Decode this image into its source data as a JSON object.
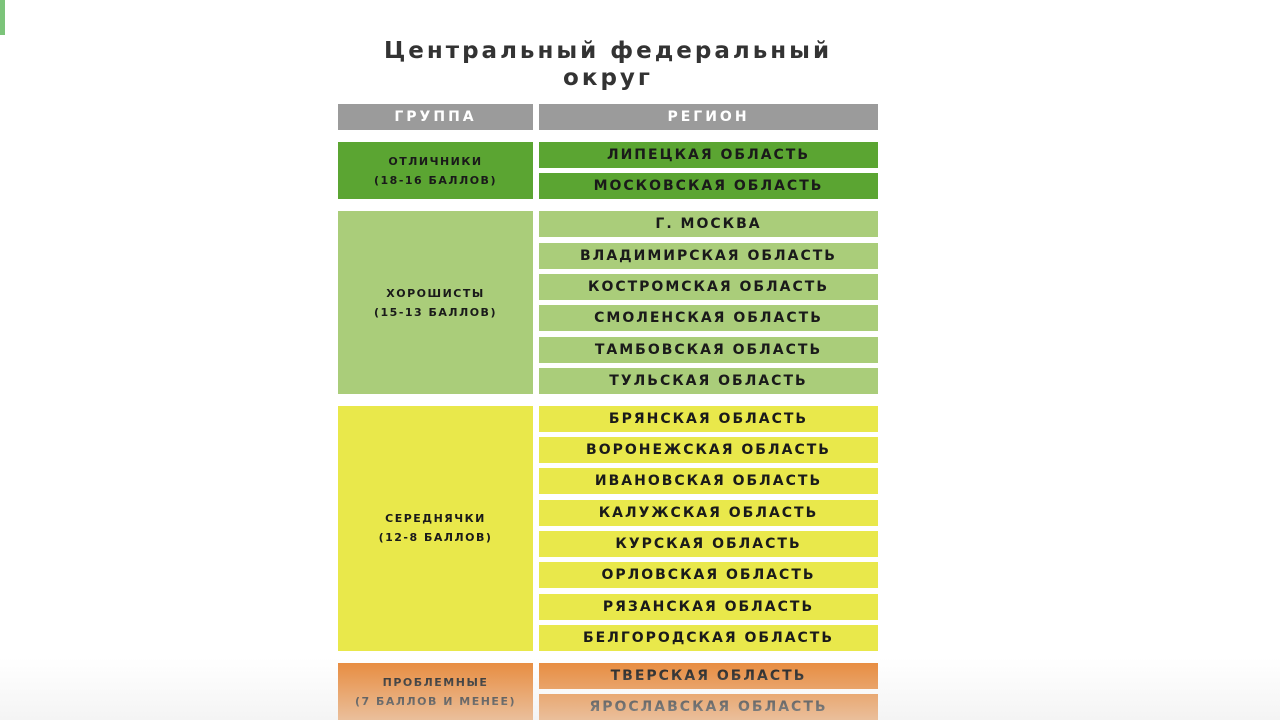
{
  "title_line1": "Центральный федеральный",
  "title_line2": "округ",
  "headers": {
    "group": "ГРУППА",
    "region": "РЕГИОН"
  },
  "groups": [
    {
      "name": "ОТЛИЧНИКИ",
      "score": "(18-16 БАЛЛОВ)",
      "color": "#5ba532",
      "regions": [
        "ЛИПЕЦКАЯ ОБЛАСТЬ",
        "МОСКОВСКАЯ ОБЛАСТЬ"
      ]
    },
    {
      "name": "ХОРОШИСТЫ",
      "score": "(15-13 БАЛЛОВ)",
      "color": "#aacd7a",
      "regions": [
        "Г. МОСКВА",
        "ВЛАДИМИРСКАЯ ОБЛАСТЬ",
        "КОСТРОМСКАЯ ОБЛАСТЬ",
        "СМОЛЕНСКАЯ ОБЛАСТЬ",
        "ТАМБОВСКАЯ ОБЛАСТЬ",
        "ТУЛЬСКАЯ ОБЛАСТЬ"
      ]
    },
    {
      "name": "СЕРЕДНЯЧКИ",
      "score": "(12-8 БАЛЛОВ)",
      "color": "#e9e84b",
      "regions": [
        "БРЯНСКАЯ ОБЛАСТЬ",
        "ВОРОНЕЖСКАЯ ОБЛАСТЬ",
        "ИВАНОВСКАЯ ОБЛАСТЬ",
        "КАЛУЖСКАЯ ОБЛАСТЬ",
        "КУРСКАЯ ОБЛАСТЬ",
        "ОРЛОВСКАЯ ОБЛАСТЬ",
        "РЯЗАНСКАЯ ОБЛАСТЬ",
        "БЕЛГОРОДСКАЯ ОБЛАСТЬ"
      ]
    },
    {
      "name": "ПРОБЛЕМНЫЕ",
      "score": "(7 БАЛЛОВ И МЕНЕЕ)",
      "color": "#e8893a",
      "regions": [
        "ТВЕРСКАЯ ОБЛАСТЬ",
        "ЯРОСЛАВСКАЯ ОБЛАСТЬ"
      ]
    }
  ]
}
